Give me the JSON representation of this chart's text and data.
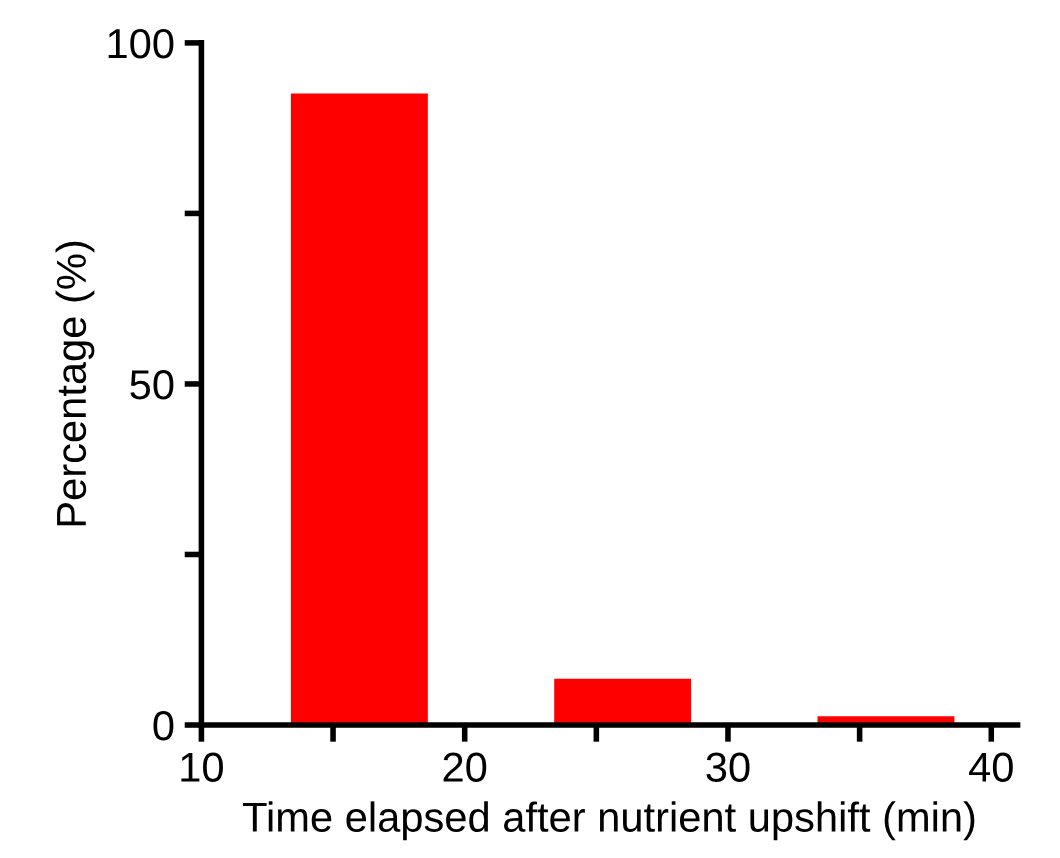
{
  "chart_data": {
    "type": "bar",
    "xlabel": "Time elapsed after nutrient upshift (min)",
    "ylabel": "Percentage (%)",
    "x": [
      16,
      26,
      36
    ],
    "values": [
      92.6,
      6.8,
      1.3
    ],
    "color": "#ff0000",
    "xlim": [
      10,
      41
    ],
    "xticks": [
      10,
      {
        "value": 15,
        "label": null
      },
      20,
      {
        "value": 25,
        "label": null
      },
      30,
      {
        "value": 35,
        "label": null
      },
      40
    ],
    "ylim": [
      0,
      100
    ],
    "yticks": [
      0,
      {
        "value": 25,
        "label": null
      },
      50,
      {
        "value": 75,
        "label": null
      },
      100
    ],
    "grid": false
  }
}
